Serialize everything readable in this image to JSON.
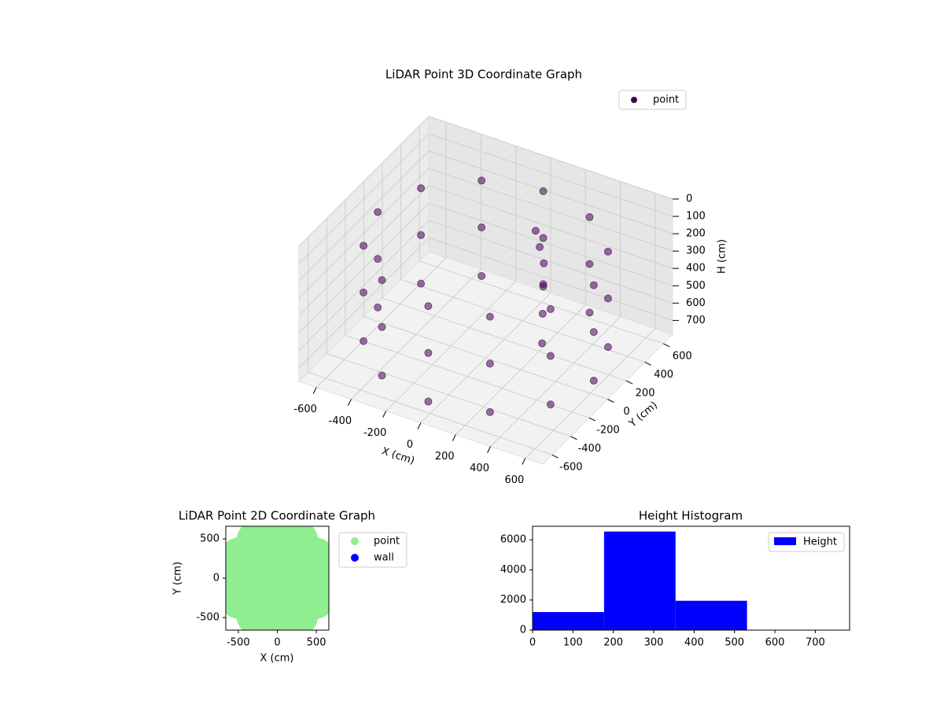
{
  "chart_data": [
    {
      "type": "scatter3d",
      "title": "LiDAR Point 3D Coordinate Graph",
      "xlabel": "X (cm)",
      "ylabel": "Y (cm)",
      "zlabel": "H (cm)",
      "xlim": [
        -700,
        700
      ],
      "ylim": [
        -700,
        700
      ],
      "zlim": [
        0,
        780
      ],
      "z_inverted": true,
      "xticks": [
        -600,
        -400,
        -200,
        0,
        200,
        400,
        600
      ],
      "yticks": [
        -600,
        -400,
        -200,
        0,
        200,
        400,
        600
      ],
      "zticks": [
        0,
        100,
        200,
        300,
        400,
        500,
        600,
        700
      ],
      "grid": true,
      "legend": "upper right",
      "series": [
        {
          "name": "point",
          "color": "#440154",
          "x": [
            620,
            537,
            310,
            0,
            -310,
            -537,
            -620,
            -537,
            -310,
            0,
            310,
            537,
            620,
            537,
            310,
            0,
            -310,
            -537,
            -620,
            -537,
            -310,
            0,
            310,
            537,
            620,
            537,
            310,
            0,
            -310,
            -537,
            -620,
            -537,
            -310,
            0,
            310,
            537,
            150,
            200,
            250,
            300,
            350,
            100
          ],
          "y": [
            0,
            310,
            537,
            620,
            537,
            310,
            0,
            -310,
            -537,
            -620,
            -537,
            -310,
            0,
            310,
            537,
            620,
            537,
            310,
            0,
            -310,
            -537,
            -620,
            -537,
            -310,
            0,
            310,
            537,
            620,
            537,
            310,
            0,
            -310,
            -537,
            -620,
            -537,
            -310,
            300,
            250,
            150,
            50,
            -50,
            350
          ],
          "z": [
            150,
            150,
            150,
            150,
            150,
            150,
            150,
            150,
            150,
            150,
            150,
            150,
            420,
            420,
            420,
            420,
            420,
            420,
            420,
            420,
            420,
            420,
            420,
            420,
            700,
            700,
            700,
            700,
            700,
            700,
            700,
            700,
            700,
            700,
            700,
            700,
            250,
            300,
            350,
            450,
            550,
            200
          ]
        }
      ]
    },
    {
      "type": "scatter",
      "title": "LiDAR Point 2D Coordinate Graph",
      "xlabel": "X (cm)",
      "ylabel": "Y (cm)",
      "xlim": [
        -660,
        660
      ],
      "ylim": [
        -660,
        660
      ],
      "xticks": [
        -500,
        0,
        500
      ],
      "yticks": [
        -500,
        0,
        500
      ],
      "legend": "outside upper right",
      "series": [
        {
          "name": "point",
          "color": "#90ee90",
          "x": [
            560,
            485,
            280,
            0,
            -280,
            -485,
            -560,
            -485,
            -280,
            0,
            280,
            485,
            280,
            198,
            0,
            -198,
            -280,
            -198,
            0,
            198,
            0
          ],
          "y": [
            0,
            280,
            485,
            560,
            485,
            280,
            0,
            -280,
            -485,
            -560,
            -485,
            -280,
            0,
            198,
            280,
            198,
            0,
            -198,
            -280,
            -198,
            0
          ]
        },
        {
          "name": "wall",
          "color": "#0000ff",
          "x": [],
          "y": []
        }
      ]
    },
    {
      "type": "histogram",
      "title": "Height Histogram",
      "xlim": [
        0,
        785
      ],
      "ylim": [
        0,
        6900
      ],
      "xticks": [
        0,
        100,
        200,
        300,
        400,
        500,
        600,
        700
      ],
      "yticks": [
        0,
        2000,
        4000,
        6000
      ],
      "bins": [
        0,
        177,
        354,
        531,
        708
      ],
      "legend": "upper right",
      "series": [
        {
          "name": "Height",
          "color": "#0000ff",
          "values": [
            1200,
            6550,
            1950,
            20
          ]
        }
      ]
    }
  ]
}
